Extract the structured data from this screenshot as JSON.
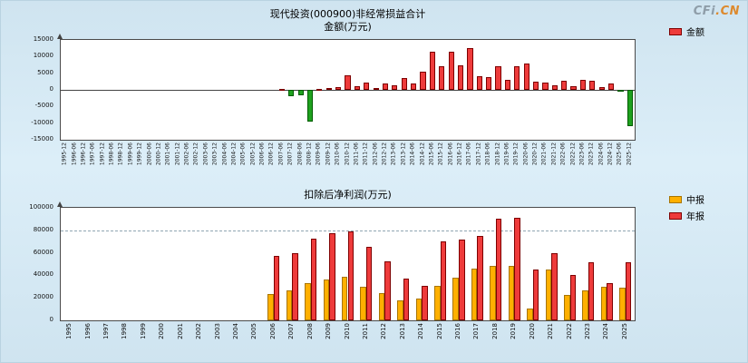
{
  "logo": {
    "cfi": "CFi",
    "cn": ".CN"
  },
  "chart_data": [
    {
      "type": "bar",
      "title": "现代投资(000900)非经常损益合计",
      "subtitle": "金额(万元)",
      "ylabel": "金额(万元)",
      "ylim": [
        -15000,
        15000
      ],
      "ytick_step": 5000,
      "grid": false,
      "legend_position": "right",
      "legend": [
        {
          "key": "amount",
          "label": "金额",
          "fill": "#ee3b3b",
          "border": "#7e0000"
        }
      ],
      "negative_fill": "#1fa11f",
      "negative_border": "#005c00",
      "categories": [
        "1995-12",
        "1996-06",
        "1996-12",
        "1997-06",
        "1997-12",
        "1998-06",
        "1998-12",
        "1999-06",
        "1999-12",
        "2000-06",
        "2000-12",
        "2001-06",
        "2001-12",
        "2002-06",
        "2002-12",
        "2003-06",
        "2003-12",
        "2004-06",
        "2004-12",
        "2005-06",
        "2005-12",
        "2006-06",
        "2006-12",
        "2007-06",
        "2007-12",
        "2008-06",
        "2008-12",
        "2009-06",
        "2009-12",
        "2010-06",
        "2010-12",
        "2011-06",
        "2011-12",
        "2012-06",
        "2012-12",
        "2013-06",
        "2013-12",
        "2014-06",
        "2014-12",
        "2015-06",
        "2015-12",
        "2016-06",
        "2016-12",
        "2017-06",
        "2017-12",
        "2018-06",
        "2018-12",
        "2019-06",
        "2019-12",
        "2020-06",
        "2020-12",
        "2021-06",
        "2021-12",
        "2022-06",
        "2022-12",
        "2023-06",
        "2023-12",
        "2024-06",
        "2024-12",
        "2025-06",
        "2025-12"
      ],
      "values": [
        0,
        0,
        0,
        0,
        0,
        0,
        0,
        0,
        0,
        0,
        0,
        0,
        0,
        0,
        0,
        0,
        0,
        0,
        0,
        0,
        0,
        0,
        0,
        300,
        -2000,
        -1500,
        -9500,
        300,
        500,
        800,
        4500,
        1200,
        2200,
        600,
        2000,
        1500,
        3500,
        2000,
        5500,
        11500,
        7000,
        11500,
        7500,
        12500,
        4000,
        3800,
        7200,
        3000,
        7000,
        8000,
        2500,
        2200,
        1500,
        2600,
        1200,
        3000,
        2800,
        700,
        1800,
        -500,
        -11000
      ]
    },
    {
      "type": "bar",
      "title": "扣除后净利润(万元)",
      "ylim": [
        0,
        100000
      ],
      "ytick_step": 20000,
      "gridlines": [
        80000
      ],
      "legend_position": "right",
      "legend": [
        {
          "key": "interim",
          "label": "中报",
          "fill": "#ffb000",
          "border": "#a87500"
        },
        {
          "key": "annual",
          "label": "年报",
          "fill": "#ee3b3b",
          "border": "#7e0000"
        }
      ],
      "categories": [
        "1995",
        "1996",
        "1997",
        "1998",
        "1999",
        "2000",
        "2001",
        "2002",
        "2003",
        "2004",
        "2005",
        "2006",
        "2007",
        "2008",
        "2009",
        "2010",
        "2011",
        "2012",
        "2013",
        "2014",
        "2015",
        "2016",
        "2017",
        "2018",
        "2019",
        "2020",
        "2021",
        "2022",
        "2023",
        "2024",
        "2025"
      ],
      "series": [
        {
          "name": "中报",
          "values": [
            0,
            0,
            0,
            0,
            0,
            0,
            0,
            0,
            0,
            0,
            0,
            23000,
            27000,
            33000,
            36000,
            38500,
            30000,
            24000,
            17500,
            19000,
            31000,
            38000,
            46000,
            48500,
            48000,
            10500,
            45000,
            22500,
            27000,
            29500,
            29000
          ]
        },
        {
          "name": "年报",
          "values": [
            0,
            0,
            0,
            0,
            0,
            0,
            0,
            0,
            0,
            0,
            0,
            57500,
            60000,
            72500,
            77500,
            79000,
            65000,
            52500,
            37500,
            31000,
            70000,
            72000,
            75000,
            90500,
            91500,
            45500,
            60000,
            40500,
            52000,
            33000,
            52000
          ]
        }
      ]
    }
  ]
}
